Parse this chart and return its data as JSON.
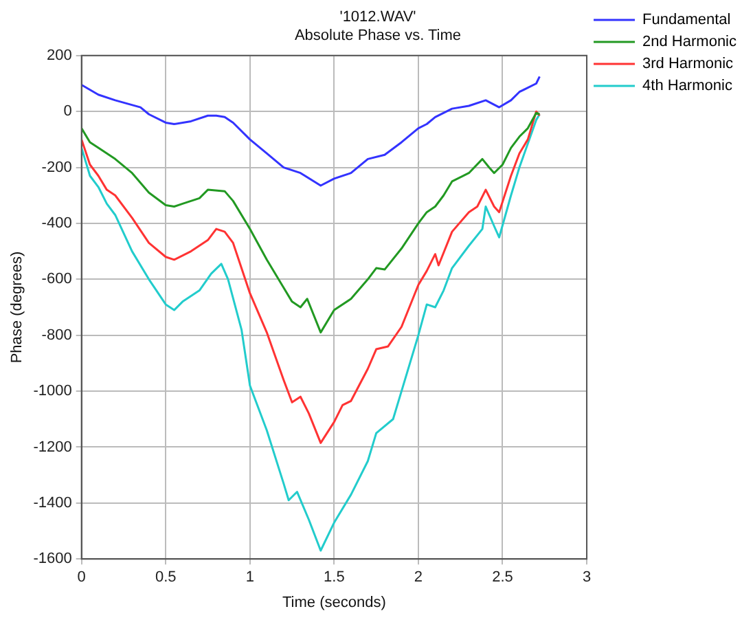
{
  "chart_data": {
    "type": "line",
    "title": "'1012.WAV'",
    "subtitle": "Absolute Phase vs. Time",
    "xlabel": "Time (seconds)",
    "ylabel": "Phase (degrees)",
    "xlim": [
      0,
      3
    ],
    "xticks": [
      0,
      0.5,
      1,
      1.5,
      2,
      2.5,
      3
    ],
    "ylim": [
      -1600,
      200
    ],
    "yticks": [
      -1600,
      -1400,
      -1200,
      -1000,
      -800,
      -600,
      -400,
      -200,
      0,
      200
    ],
    "grid": true,
    "legend": "top right",
    "marker": "none",
    "line_style": "solid",
    "series": [
      {
        "name": "Fundamental",
        "color": "#3333ff",
        "x": [
          0,
          0.1,
          0.2,
          0.35,
          0.4,
          0.5,
          0.55,
          0.65,
          0.75,
          0.8,
          0.85,
          0.9,
          1.0,
          1.1,
          1.2,
          1.25,
          1.3,
          1.42,
          1.5,
          1.6,
          1.7,
          1.8,
          1.9,
          2.0,
          2.05,
          2.1,
          2.2,
          2.3,
          2.4,
          2.48,
          2.55,
          2.6,
          2.7,
          2.72
        ],
        "values": [
          95,
          60,
          40,
          15,
          -10,
          -40,
          -45,
          -35,
          -15,
          -15,
          -20,
          -40,
          -100,
          -150,
          -200,
          -210,
          -220,
          -265,
          -240,
          -220,
          -170,
          -155,
          -110,
          -60,
          -45,
          -20,
          10,
          20,
          40,
          15,
          40,
          70,
          100,
          125
        ]
      },
      {
        "name": "2nd Harmonic",
        "color": "#229922",
        "x": [
          0,
          0.05,
          0.1,
          0.2,
          0.3,
          0.4,
          0.5,
          0.55,
          0.6,
          0.7,
          0.75,
          0.85,
          0.9,
          1.0,
          1.1,
          1.2,
          1.25,
          1.3,
          1.34,
          1.42,
          1.5,
          1.6,
          1.7,
          1.75,
          1.8,
          1.9,
          2.0,
          2.05,
          2.1,
          2.15,
          2.2,
          2.3,
          2.38,
          2.42,
          2.45,
          2.5,
          2.55,
          2.6,
          2.65,
          2.7,
          2.72
        ],
        "values": [
          -60,
          -110,
          -130,
          -170,
          -220,
          -290,
          -335,
          -340,
          -330,
          -310,
          -280,
          -285,
          -320,
          -420,
          -530,
          -630,
          -680,
          -700,
          -670,
          -790,
          -710,
          -670,
          -600,
          -560,
          -565,
          -490,
          -400,
          -360,
          -340,
          -300,
          -250,
          -220,
          -170,
          -200,
          -220,
          -190,
          -130,
          -90,
          -60,
          -5,
          -10
        ]
      },
      {
        "name": "3rd Harmonic",
        "color": "#ff3333",
        "x": [
          0,
          0.05,
          0.1,
          0.15,
          0.2,
          0.3,
          0.4,
          0.5,
          0.55,
          0.65,
          0.75,
          0.8,
          0.85,
          0.9,
          1.0,
          1.1,
          1.2,
          1.25,
          1.3,
          1.35,
          1.42,
          1.5,
          1.55,
          1.6,
          1.7,
          1.75,
          1.82,
          1.9,
          2.0,
          2.05,
          2.1,
          2.12,
          2.2,
          2.3,
          2.35,
          2.4,
          2.45,
          2.48,
          2.55,
          2.6,
          2.65,
          2.7,
          2.72
        ],
        "values": [
          -100,
          -190,
          -230,
          -280,
          -300,
          -380,
          -470,
          -520,
          -530,
          -500,
          -460,
          -420,
          -430,
          -470,
          -650,
          -790,
          -960,
          -1040,
          -1020,
          -1080,
          -1185,
          -1110,
          -1050,
          -1035,
          -920,
          -850,
          -840,
          -770,
          -620,
          -570,
          -510,
          -550,
          -430,
          -360,
          -340,
          -280,
          -340,
          -360,
          -230,
          -150,
          -100,
          0,
          -15
        ]
      },
      {
        "name": "4th Harmonic",
        "color": "#22cccc",
        "x": [
          0,
          0.05,
          0.1,
          0.15,
          0.2,
          0.3,
          0.4,
          0.5,
          0.55,
          0.6,
          0.7,
          0.77,
          0.83,
          0.87,
          0.95,
          1.0,
          1.1,
          1.2,
          1.23,
          1.28,
          1.35,
          1.42,
          1.5,
          1.6,
          1.7,
          1.75,
          1.85,
          1.9,
          2.0,
          2.05,
          2.1,
          2.15,
          2.2,
          2.3,
          2.38,
          2.4,
          2.45,
          2.48,
          2.55,
          2.6,
          2.7,
          2.72
        ],
        "values": [
          -130,
          -230,
          -270,
          -330,
          -370,
          -500,
          -600,
          -690,
          -710,
          -680,
          -640,
          -580,
          -545,
          -600,
          -780,
          -980,
          -1140,
          -1330,
          -1390,
          -1360,
          -1460,
          -1570,
          -1470,
          -1370,
          -1250,
          -1150,
          -1100,
          -1000,
          -800,
          -690,
          -700,
          -640,
          -560,
          -480,
          -420,
          -340,
          -410,
          -450,
          -300,
          -200,
          -30,
          -10
        ]
      }
    ]
  }
}
